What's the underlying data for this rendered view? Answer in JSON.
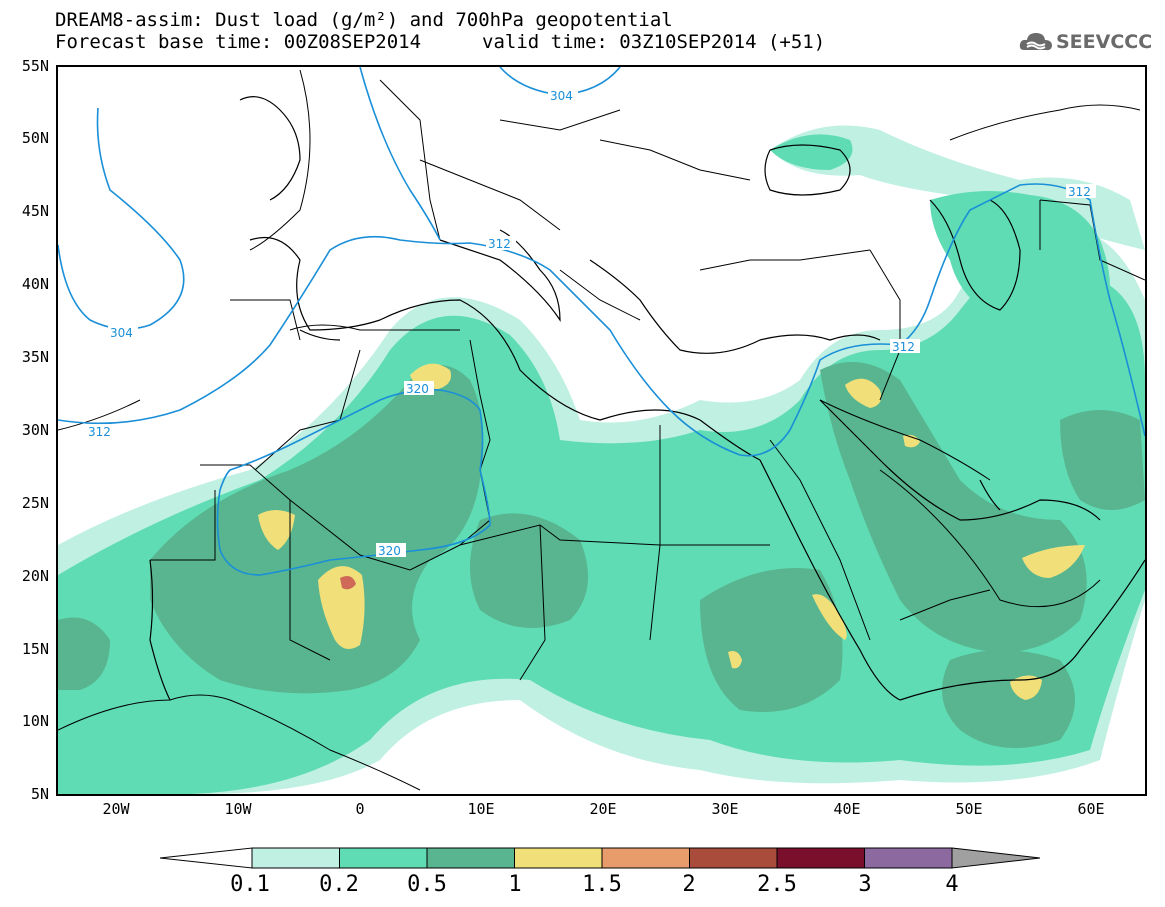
{
  "header": {
    "title": "DREAM8-assim: Dust load (g/m²) and 700hPa geopotential",
    "base_time": "Forecast base time: 00Z08SEP2014",
    "valid_time": "valid time: 03Z10SEP2014 (+51)"
  },
  "logo": {
    "text": "SEEVCCC",
    "icon": "cloud-logo-icon"
  },
  "map": {
    "latitude_labels": [
      "55N",
      "50N",
      "45N",
      "40N",
      "35N",
      "30N",
      "25N",
      "20N",
      "15N",
      "10N",
      "5N"
    ],
    "longitude_labels": [
      "20W",
      "10W",
      "0",
      "10E",
      "20E",
      "30E",
      "40E",
      "50E",
      "60E"
    ],
    "contour_labels": [
      "304",
      "304",
      "312",
      "312",
      "312",
      "312",
      "320",
      "320"
    ],
    "colors": {
      "c01": "#bff0e2",
      "c02": "#5fdcb3",
      "c05": "#58b590",
      "c10": "#f1e07a",
      "c15": "#e89c6c",
      "c20": "#cf6a58",
      "contour": "#1a8fd8"
    }
  },
  "colorbar": {
    "labels": [
      "0.1",
      "0.2",
      "0.5",
      "1",
      "1.5",
      "2",
      "2.5",
      "3",
      "4"
    ],
    "colors": [
      "#bff0e2",
      "#5fdcb3",
      "#58b590",
      "#f1e07a",
      "#e89c6c",
      "#a94c3c",
      "#7a0f2c",
      "#8c6aa0",
      "#a0a0a0"
    ]
  }
}
